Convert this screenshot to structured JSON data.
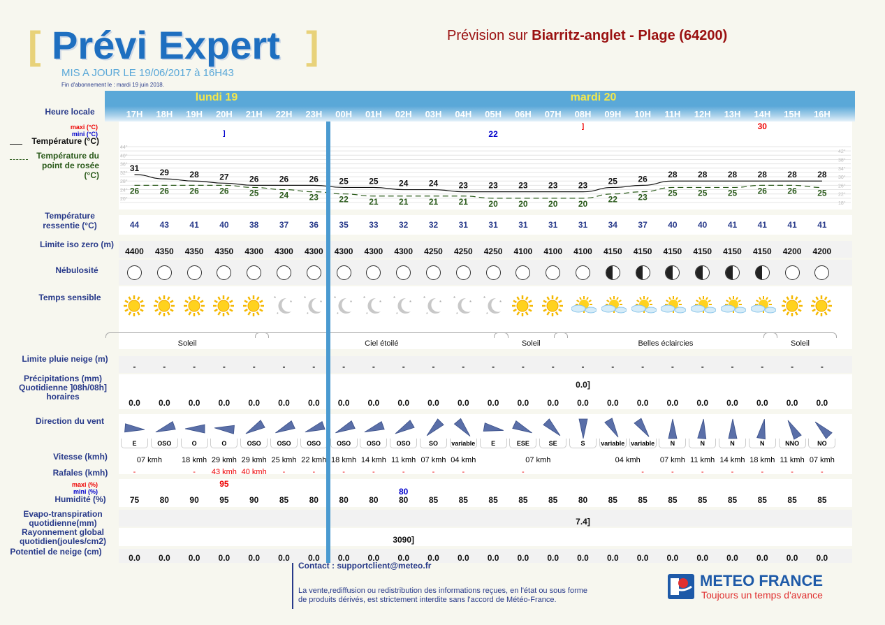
{
  "header": {
    "logo_title": "Prévi Expert",
    "bracket_left": "[",
    "bracket_right": "]",
    "update": "MIS A JOUR LE 19/06/2017 à 16H43",
    "subscription": "Fin d'abonnement le : mardi 19 juin 2018.",
    "forecast_prefix": "Prévision sur ",
    "forecast_place": "Biarritz-anglet - Plage (64200)"
  },
  "days": [
    {
      "label": "lundi 19"
    },
    {
      "label": "mardi 20"
    }
  ],
  "labels": {
    "heure": "Heure locale",
    "maxi": "maxi (°C)",
    "mini": "mini (°C)",
    "temp": "Température (°C)",
    "dew_line1": "Température du",
    "dew_line2": "point de rosée (°C)",
    "feel_line1": "Température",
    "feel_line2": "ressentie (°C)",
    "iso": "Limite iso zero (m)",
    "nebul": "Nébulosité",
    "sensible": "Temps sensible",
    "snowlimit": "Limite pluie neige (m)",
    "precip_line1": "Précipitations (mm)",
    "precip_line2": "Quotidienne ]08h/08h]",
    "precip_line3": "horaires",
    "wind": "Direction du vent",
    "speed": "Vitesse (kmh)",
    "gust": "Rafales (kmh)",
    "hum_max": "maxi (%)",
    "hum_min": "mini (%)",
    "hum": "Humidité (%)",
    "evapo_line1": "Evapo-transpiration",
    "evapo_line2": "quotidienne(mm)",
    "ray_line1": "Rayonnement global",
    "ray_line2": "quotidien(joules/cm2)",
    "snow": "Potentiel de neige (cm)"
  },
  "hours": [
    "17H",
    "18H",
    "19H",
    "20H",
    "21H",
    "22H",
    "23H",
    "00H",
    "01H",
    "02H",
    "03H",
    "04H",
    "05H",
    "06H",
    "07H",
    "08H",
    "09H",
    "10H",
    "11H",
    "12H",
    "13H",
    "14H",
    "15H",
    "16H"
  ],
  "temp_max_mark": "30",
  "temp_min_mark": "22",
  "temp_bracket_left": "]",
  "temp_bracket_right": "]",
  "temperature": [
    31,
    29,
    28,
    27,
    26,
    26,
    26,
    25,
    25,
    24,
    24,
    23,
    23,
    23,
    23,
    23,
    25,
    26,
    28,
    28,
    28,
    28,
    28,
    28
  ],
  "dewpoint": [
    26,
    26,
    26,
    26,
    25,
    24,
    23,
    22,
    21,
    21,
    21,
    21,
    20,
    20,
    20,
    20,
    22,
    23,
    25,
    25,
    25,
    26,
    26,
    25
  ],
  "temp_axis_left": [
    "44°",
    "40°",
    "36°",
    "32°",
    "28°",
    "24°",
    "20°"
  ],
  "temp_axis_right": [
    "42°",
    "38°",
    "34°",
    "30°",
    "26°",
    "22°",
    "18°"
  ],
  "feels_like": [
    44,
    43,
    41,
    40,
    38,
    37,
    36,
    35,
    33,
    32,
    32,
    31,
    31,
    31,
    31,
    31,
    34,
    37,
    40,
    40,
    41,
    41,
    41,
    41
  ],
  "iso_zero": [
    4400,
    4350,
    4350,
    4350,
    4300,
    4300,
    4300,
    4300,
    4300,
    4300,
    4250,
    4250,
    4250,
    4100,
    4100,
    4100,
    4150,
    4150,
    4150,
    4150,
    4150,
    4150,
    4200,
    4200
  ],
  "nebulosity": [
    "clear",
    "clear",
    "clear",
    "clear",
    "clear",
    "clear",
    "clear",
    "clear",
    "clear",
    "clear",
    "clear",
    "clear",
    "clear",
    "clear",
    "clear",
    "clear",
    "half",
    "half",
    "half",
    "half",
    "half",
    "half",
    "clear",
    "clear"
  ],
  "weather": [
    "sun",
    "sun",
    "sun",
    "sun",
    "sun",
    "moon",
    "moon",
    "moon",
    "moon",
    "moon",
    "moon",
    "moon",
    "moon",
    "sun",
    "sun",
    "suncloud",
    "suncloud",
    "suncloud",
    "suncloud",
    "suncloud",
    "suncloud",
    "suncloud",
    "sun",
    "sun"
  ],
  "weather_groups": [
    {
      "label": "Soleil",
      "from": 0,
      "to": 4
    },
    {
      "label": "Ciel étoilé",
      "from": 5,
      "to": 12
    },
    {
      "label": "Soleil",
      "from": 13,
      "to": 14
    },
    {
      "label": "Belles éclaircies",
      "from": 15,
      "to": 21
    },
    {
      "label": "Soleil",
      "from": 22,
      "to": 23
    }
  ],
  "snow_limit": [
    "-",
    "-",
    "-",
    "-",
    "-",
    "-",
    "-",
    "-",
    "-",
    "-",
    "-",
    "-",
    "-",
    "-",
    "-",
    "-",
    "-",
    "-",
    "-",
    "-",
    "-",
    "-",
    "-",
    "-"
  ],
  "precip_daily": "0.0]",
  "precip_hourly": [
    "0.0",
    "0.0",
    "0.0",
    "0.0",
    "0.0",
    "0.0",
    "0.0",
    "0.0",
    "0.0",
    "0.0",
    "0.0",
    "0.0",
    "0.0",
    "0.0",
    "0.0",
    "0.0",
    "0.0",
    "0.0",
    "0.0",
    "0.0",
    "0.0",
    "0.0",
    "0.0",
    "0.0"
  ],
  "wind_dir": [
    "E",
    "OSO",
    "O",
    "O",
    "OSO",
    "OSO",
    "OSO",
    "OSO",
    "OSO",
    "OSO",
    "SO",
    "variable",
    "E",
    "ESE",
    "SE",
    "S",
    "variable",
    "variable",
    "N",
    "N",
    "N",
    "N",
    "NNO",
    "NO"
  ],
  "wind_angle": [
    95,
    250,
    270,
    275,
    240,
    245,
    250,
    245,
    250,
    240,
    225,
    140,
    100,
    115,
    135,
    180,
    150,
    145,
    360,
    5,
    0,
    10,
    330,
    315
  ],
  "wind_speed": [
    {
      "text": "07 kmh",
      "from": 0,
      "to": 1
    },
    {
      "text": "18 kmh",
      "from": 2,
      "to": 2
    },
    {
      "text": "29 kmh",
      "from": 3,
      "to": 3
    },
    {
      "text": "29 kmh",
      "from": 4,
      "to": 4
    },
    {
      "text": "25 kmh",
      "from": 5,
      "to": 5
    },
    {
      "text": "22 kmh",
      "from": 6,
      "to": 6
    },
    {
      "text": "18 kmh",
      "from": 7,
      "to": 7
    },
    {
      "text": "14 kmh",
      "from": 8,
      "to": 8
    },
    {
      "text": "11 kmh",
      "from": 9,
      "to": 9
    },
    {
      "text": "07 kmh",
      "from": 10,
      "to": 10
    },
    {
      "text": "04 kmh",
      "from": 11,
      "to": 11
    },
    {
      "text": "07 kmh",
      "from": 12,
      "to": 15
    },
    {
      "text": "04 kmh",
      "from": 16,
      "to": 17
    },
    {
      "text": "07 kmh",
      "from": 18,
      "to": 18
    },
    {
      "text": "11 kmh",
      "from": 19,
      "to": 19
    },
    {
      "text": "14 kmh",
      "from": 20,
      "to": 20
    },
    {
      "text": "18 kmh",
      "from": 21,
      "to": 21
    },
    {
      "text": "11 kmh",
      "from": 22,
      "to": 22
    },
    {
      "text": "07 kmh",
      "from": 23,
      "to": 23
    }
  ],
  "gusts": [
    {
      "text": "-",
      "i": 0
    },
    {
      "text": "-",
      "i": 2
    },
    {
      "text": "43 kmh",
      "i": 3
    },
    {
      "text": "40 kmh",
      "i": 4
    },
    {
      "text": "-",
      "i": 5
    },
    {
      "text": "-",
      "i": 6
    },
    {
      "text": "-",
      "i": 7
    },
    {
      "text": "-",
      "i": 8
    },
    {
      "text": "-",
      "i": 9
    },
    {
      "text": "-",
      "i": 10
    },
    {
      "text": "-",
      "i": 11
    },
    {
      "text": "-",
      "i": 13
    },
    {
      "text": "-",
      "i": 17
    },
    {
      "text": "-",
      "i": 18
    },
    {
      "text": "-",
      "i": 19
    },
    {
      "text": "-",
      "i": 20
    },
    {
      "text": "-",
      "i": 21
    },
    {
      "text": "-",
      "i": 22
    },
    {
      "text": "-",
      "i": 23
    }
  ],
  "humidity_max_mark": "95",
  "humidity_min_mark": "80",
  "humidity": [
    75,
    80,
    90,
    95,
    90,
    85,
    80,
    80,
    80,
    80,
    85,
    85,
    85,
    85,
    85,
    80,
    85,
    85,
    85,
    85,
    85,
    85,
    85,
    85
  ],
  "evapo": "7.4]",
  "radiation": "3090]",
  "snow_potential": [
    "0.0",
    "0.0",
    "0.0",
    "0.0",
    "0.0",
    "0.0",
    "0.0",
    "0.0",
    "0.0",
    "0.0",
    "0.0",
    "0.0",
    "0.0",
    "0.0",
    "0.0",
    "0.0",
    "0.0",
    "0.0",
    "0.0",
    "0.0",
    "0.0",
    "0.0",
    "0.0",
    "0.0"
  ],
  "footer": {
    "contact": "Contact : supportclient@meteo.fr",
    "notice_line1": "La vente,rediffusion ou redistribution des informations reçues, en l'état ou sous forme",
    "notice_line2": "de produits dérivés, est strictement interdite sans l'accord de Météo-France.",
    "brand": "METEO FRANCE",
    "slogan": "Toujours un temps d'avance"
  },
  "colors": {
    "logo": "#1e6fc0",
    "bracket": "#e8d27a",
    "header_bar": "#5aa8d8",
    "day_label": "#f5e84a",
    "label": "#283a8a",
    "place": "#9a1010",
    "now_line": "#4a9ad0"
  }
}
